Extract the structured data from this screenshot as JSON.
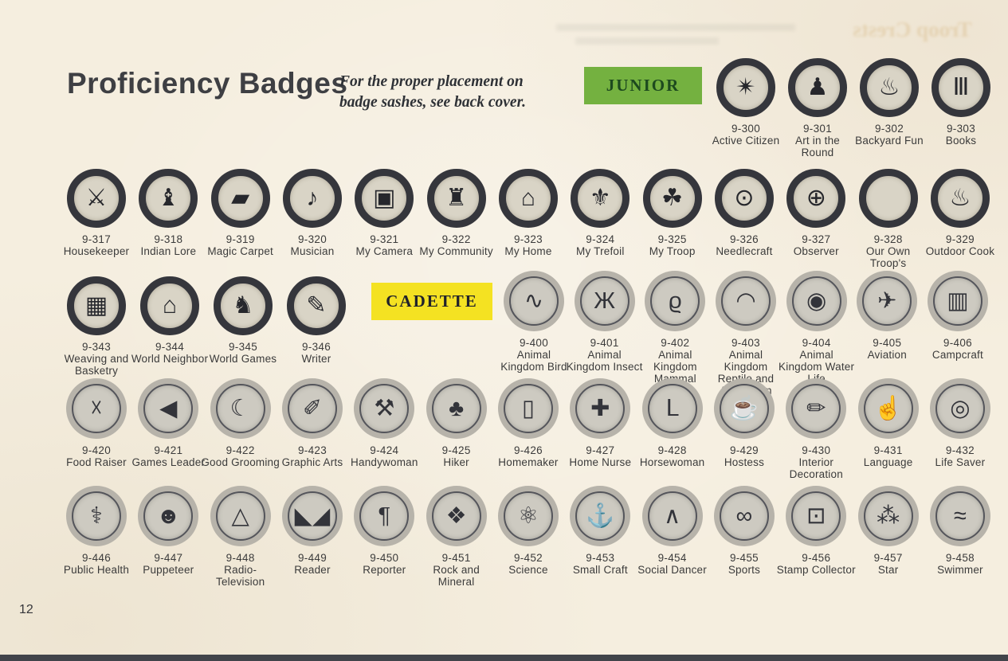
{
  "page": {
    "title": "Proficiency Badges",
    "note_line1": "For the proper placement on",
    "note_line2": "badge sashes, see back cover.",
    "page_number": "12",
    "section_labels": {
      "junior": "JUNIOR",
      "cadette": "CADETTE"
    },
    "ghost_title": "Troop Crests",
    "colors": {
      "paper": "#f5eedf",
      "junior_label_bg": "#74b140",
      "junior_label_text": "#1d4a1e",
      "cadette_label_bg": "#f4e222",
      "cadette_label_text": "#20222b",
      "junior_ring": "#35363c",
      "cadette_ring": "#b7b3aa",
      "bottom_edge": "#41444a"
    }
  },
  "rows": [
    {
      "name": "junior-intro-row",
      "style": "junior",
      "badges": [
        {
          "number": "9-300",
          "label": "Active Citizen",
          "glyph": "✴",
          "icon": "compass-rose-icon"
        },
        {
          "number": "9-301",
          "label": "Art in the Round",
          "glyph": "♟",
          "icon": "statue-icon"
        },
        {
          "number": "9-302",
          "label": "Backyard Fun",
          "glyph": "♨",
          "icon": "grill-icon"
        },
        {
          "number": "9-303",
          "label": "Books",
          "glyph": "Ⅲ",
          "icon": "books-icon"
        }
      ]
    },
    {
      "name": "junior-row-2",
      "style": "junior",
      "badges": [
        {
          "number": "9-317",
          "label": "Housekeeper",
          "glyph": "⚔",
          "icon": "crossed-keys-icon"
        },
        {
          "number": "9-318",
          "label": "Indian Lore",
          "glyph": "♝",
          "icon": "indian-figure-icon"
        },
        {
          "number": "9-319",
          "label": "Magic Carpet",
          "glyph": "▰",
          "icon": "flying-carpet-icon"
        },
        {
          "number": "9-320",
          "label": "Musician",
          "glyph": "♪",
          "icon": "treble-clef-icon"
        },
        {
          "number": "9-321",
          "label": "My Camera",
          "glyph": "▣",
          "icon": "camera-icon"
        },
        {
          "number": "9-322",
          "label": "My Community",
          "glyph": "♜",
          "icon": "building-rays-icon"
        },
        {
          "number": "9-323",
          "label": "My Home",
          "glyph": "⌂",
          "icon": "hearth-icon"
        },
        {
          "number": "9-324",
          "label": "My Trefoil",
          "glyph": "⚜",
          "icon": "trefoil-outline-icon"
        },
        {
          "number": "9-325",
          "label": "My Troop",
          "glyph": "☘",
          "icon": "trefoil-icon"
        },
        {
          "number": "9-326",
          "label": "Needlecraft",
          "glyph": "⊙",
          "icon": "embroidery-hoop-icon"
        },
        {
          "number": "9-327",
          "label": "Observer",
          "glyph": "⊕",
          "icon": "quartered-circle-icon"
        },
        {
          "number": "9-328",
          "label": "Our Own Troop's",
          "glyph": "",
          "icon": "blank-medallion-icon"
        },
        {
          "number": "9-329",
          "label": "Outdoor Cook",
          "glyph": "♨",
          "icon": "cooking-pot-icon"
        }
      ]
    },
    {
      "name": "junior-row-3",
      "style": "junior",
      "badges": [
        {
          "number": "9-343",
          "label": "Weaving and Basketry",
          "glyph": "▦",
          "icon": "basket-icon"
        },
        {
          "number": "9-344",
          "label": "World Neighbor",
          "glyph": "⌂",
          "icon": "house-mountains-icon"
        },
        {
          "number": "9-345",
          "label": "World Games",
          "glyph": "♞",
          "icon": "runners-icon"
        },
        {
          "number": "9-346",
          "label": "Writer",
          "glyph": "✎",
          "icon": "scroll-icon"
        }
      ]
    },
    {
      "name": "cadette-row-1",
      "style": "cadette",
      "badges": [
        {
          "number": "9-400",
          "label": "Animal Kingdom Bird",
          "glyph": "∿",
          "icon": "bird-icon"
        },
        {
          "number": "9-401",
          "label": "Animal Kingdom Insect",
          "glyph": "Ж",
          "icon": "dragonfly-icon"
        },
        {
          "number": "9-402",
          "label": "Animal Kingdom Mammal",
          "glyph": "ϱ",
          "icon": "squirrel-icon"
        },
        {
          "number": "9-403",
          "label": "Animal Kingdom Reptile and Amphibian",
          "glyph": "◠",
          "icon": "turtle-icon"
        },
        {
          "number": "9-404",
          "label": "Animal Kingdom Water Life",
          "glyph": "◉",
          "icon": "seashell-icon"
        },
        {
          "number": "9-405",
          "label": "Aviation",
          "glyph": "✈",
          "icon": "airplane-icon"
        },
        {
          "number": "9-406",
          "label": "Campcraft",
          "glyph": "▥",
          "icon": "camp-basket-icon"
        }
      ]
    },
    {
      "name": "cadette-row-2",
      "style": "cadette",
      "badges": [
        {
          "number": "9-420",
          "label": "Food Raiser",
          "glyph": "☓",
          "icon": "crossed-garden-tools-icon"
        },
        {
          "number": "9-421",
          "label": "Games Leader",
          "glyph": "◀",
          "icon": "megaphone-icon"
        },
        {
          "number": "9-422",
          "label": "Good Grooming",
          "glyph": "☾",
          "icon": "slipper-mirror-icon"
        },
        {
          "number": "9-423",
          "label": "Graphic Arts",
          "glyph": "✐",
          "icon": "paint-roller-icon"
        },
        {
          "number": "9-424",
          "label": "Handywoman",
          "glyph": "⚒",
          "icon": "hammer-tools-icon"
        },
        {
          "number": "9-425",
          "label": "Hiker",
          "glyph": "♣",
          "icon": "pine-tree-sun-icon"
        },
        {
          "number": "9-426",
          "label": "Homemaker",
          "glyph": "▯",
          "icon": "doorway-icon"
        },
        {
          "number": "9-427",
          "label": "Home Nurse",
          "glyph": "✚",
          "icon": "bed-icon"
        },
        {
          "number": "9-428",
          "label": "Horsewoman",
          "glyph": "Ⅼ",
          "icon": "riding-boot-icon"
        },
        {
          "number": "9-429",
          "label": "Hostess",
          "glyph": "☕",
          "icon": "teapot-icon"
        },
        {
          "number": "9-430",
          "label": "Interior Decoration",
          "glyph": "✏",
          "icon": "paintbrush-lamp-icon"
        },
        {
          "number": "9-431",
          "label": "Language",
          "glyph": "☝",
          "icon": "signing-hand-icon"
        },
        {
          "number": "9-432",
          "label": "Life Saver",
          "glyph": "◎",
          "icon": "life-ring-icon"
        }
      ]
    },
    {
      "name": "cadette-row-3",
      "style": "cadette",
      "badges": [
        {
          "number": "9-446",
          "label": "Public Health",
          "glyph": "⚕",
          "icon": "caduceus-icon"
        },
        {
          "number": "9-447",
          "label": "Puppeteer",
          "glyph": "☻",
          "icon": "puppet-icon"
        },
        {
          "number": "9-448",
          "label": "Radio-Television",
          "glyph": "△",
          "icon": "broadcast-tower-icon"
        },
        {
          "number": "9-449",
          "label": "Reader",
          "glyph": "◣◢",
          "icon": "open-book-icon"
        },
        {
          "number": "9-450",
          "label": "Reporter",
          "glyph": "¶",
          "icon": "reversed-p-icon"
        },
        {
          "number": "9-451",
          "label": "Rock and Mineral",
          "glyph": "❖",
          "icon": "rocks-icon"
        },
        {
          "number": "9-452",
          "label": "Science",
          "glyph": "⚛",
          "icon": "atom-icon"
        },
        {
          "number": "9-453",
          "label": "Small Craft",
          "glyph": "⚓",
          "icon": "anchor-icon"
        },
        {
          "number": "9-454",
          "label": "Social Dancer",
          "glyph": "∧",
          "icon": "dancing-legs-icon"
        },
        {
          "number": "9-455",
          "label": "Sports",
          "glyph": "∞",
          "icon": "sports-equipment-icon"
        },
        {
          "number": "9-456",
          "label": "Stamp Collector",
          "glyph": "⊡",
          "icon": "postage-stamp-icon"
        },
        {
          "number": "9-457",
          "label": "Star",
          "glyph": "⁂",
          "icon": "stars-icon"
        },
        {
          "number": "9-458",
          "label": "Swimmer",
          "glyph": "≈",
          "icon": "wave-icon"
        }
      ]
    }
  ]
}
